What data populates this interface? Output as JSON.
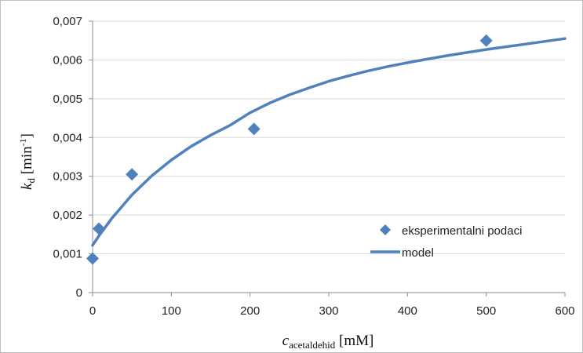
{
  "chart_data": {
    "type": "scatter",
    "xlim": [
      0,
      600
    ],
    "ylim": [
      0,
      0.007
    ],
    "xticks": [
      0,
      100,
      200,
      300,
      400,
      500,
      600
    ],
    "yticks": [
      0,
      0.001,
      0.002,
      0.003,
      0.004,
      0.005,
      0.006,
      0.007
    ],
    "xtick_labels": [
      "0",
      "100",
      "200",
      "300",
      "400",
      "500",
      "600"
    ],
    "ytick_labels": [
      "0",
      "0,001",
      "0,002",
      "0,003",
      "0,004",
      "0,005",
      "0,006",
      "0,007"
    ],
    "xlabel": {
      "main": "c",
      "sub": "acetaldehid",
      "unit": " [mM]"
    },
    "ylabel": {
      "main": "k",
      "sub": "d",
      "unit": " [min",
      "sup": "-1",
      "close": "]"
    },
    "grid": "horizontal",
    "legend_position": "bottom-right",
    "series": [
      {
        "name": "eksperimentalni podaci",
        "kind": "scatter",
        "marker": "diamond",
        "color": "#4f81bd",
        "x": [
          0,
          8,
          50,
          205,
          500
        ],
        "y": [
          0.00088,
          0.00165,
          0.00305,
          0.00422,
          0.0065
        ]
      },
      {
        "name": "model",
        "kind": "line",
        "color": "#4f81bd",
        "x": [
          0,
          10,
          25,
          50,
          75,
          100,
          125,
          150,
          175,
          200,
          225,
          250,
          275,
          300,
          325,
          350,
          375,
          400,
          425,
          450,
          475,
          500,
          525,
          550,
          575,
          600
        ],
        "y": [
          0.00122,
          0.00152,
          0.00193,
          0.00252,
          0.00301,
          0.00342,
          0.00377,
          0.00406,
          0.00432,
          0.00464,
          0.00489,
          0.0051,
          0.00528,
          0.00545,
          0.00559,
          0.00572,
          0.00583,
          0.00593,
          0.00602,
          0.00611,
          0.00619,
          0.00627,
          0.00634,
          0.00641,
          0.00648,
          0.00655
        ]
      }
    ]
  }
}
